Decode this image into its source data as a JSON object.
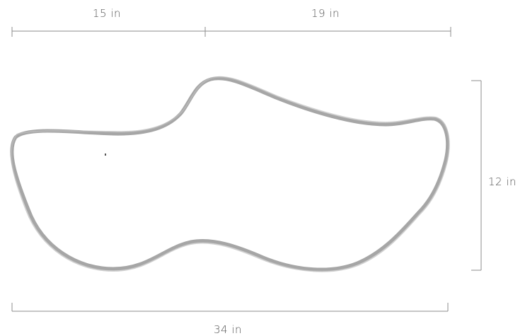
{
  "figure": {
    "type": "dimensioned-outline",
    "shape_icon": "clog-shoe-outline-icon",
    "outline_color": "#a6a6a6",
    "dimension_color": "#8c8c8c",
    "text_color": "#555555"
  },
  "dimensions": {
    "top_left": "15 in",
    "top_right": "19 in",
    "height": "12 in",
    "total_width": "34 in"
  }
}
